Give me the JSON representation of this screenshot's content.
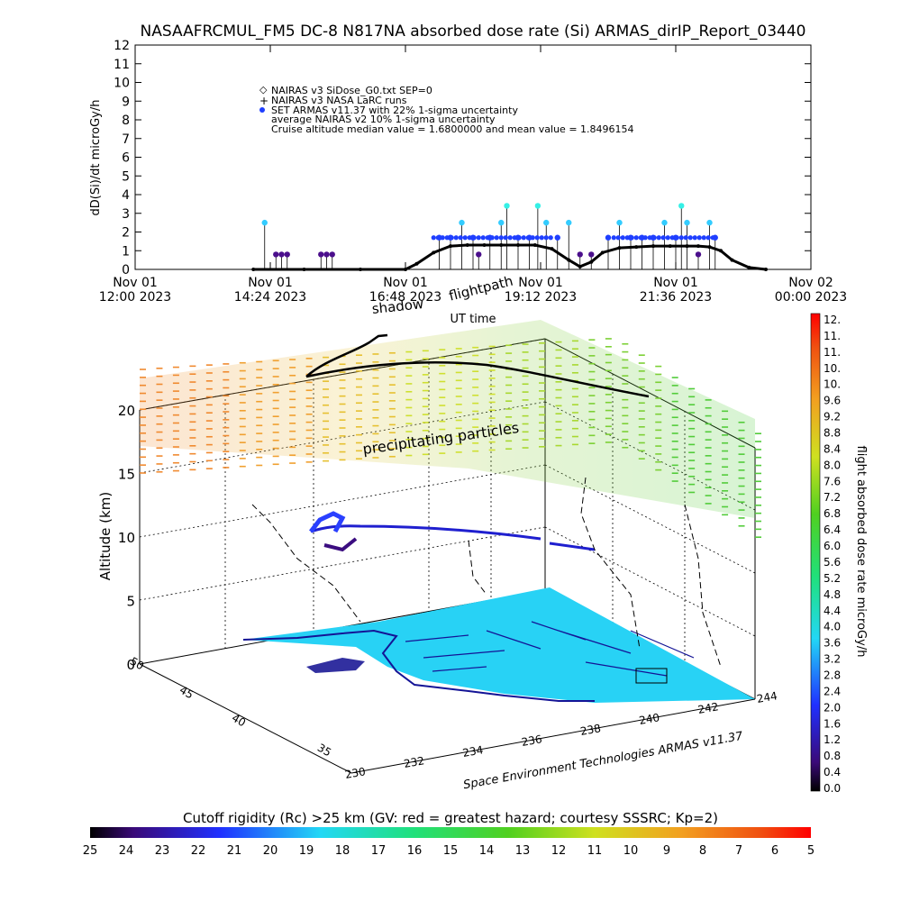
{
  "title": "NASAAFRCMUL_FM5 DC-8   N817NA absorbed dose rate (Si) ARMAS_dirIP_Report_03440",
  "colors": {
    "sidose": "#000000",
    "larc": "#000000",
    "armas_low": "#4b0f8c",
    "armas_mid": "#1f3fff",
    "armas_high": "#33ccff",
    "armas_peak": "#35f0e6",
    "ground": "#28d2f5",
    "coast": "#141496"
  },
  "time_plot": {
    "ylabel": "dD(Si)/dt microGy/h",
    "xlabel": "UT time",
    "y_ticks": [
      "0",
      "1",
      "2",
      "3",
      "4",
      "5",
      "6",
      "7",
      "8",
      "9",
      "10",
      "11",
      "12"
    ],
    "x_ticks": [
      {
        "line1": "Nov 01",
        "line2": "12:00 2023"
      },
      {
        "line1": "Nov 01",
        "line2": "14:24 2023"
      },
      {
        "line1": "Nov 01",
        "line2": "16:48 2023"
      },
      {
        "line1": "Nov 01",
        "line2": "19:12 2023"
      },
      {
        "line1": "Nov 01",
        "line2": "21:36 2023"
      },
      {
        "line1": "Nov 02",
        "line2": "00:00 2023"
      }
    ],
    "legend": [
      "NAIRAS v3 SiDose_G0.txt SEP=0",
      "NAIRAS v3 NASA LaRC runs",
      "SET ARMAS v11.37 with 22% 1-sigma uncertainty",
      "average NAIRAS v2 10% 1-sigma uncertainty",
      "Cruise altitude median value = 1.6800000 and mean value = 1.8496154"
    ]
  },
  "globe": {
    "label_shadow": "shadow",
    "label_flightpath": "flightpath",
    "label_precip": "precipitating particles",
    "altitude_label": "Altitude (km)",
    "altitude_ticks": [
      "0",
      "5",
      "10",
      "15",
      "20"
    ],
    "lon_ticks": [
      "230",
      "232",
      "234",
      "236",
      "238",
      "240",
      "242",
      "244"
    ],
    "lat_ticks": [
      "35",
      "40",
      "45",
      "50"
    ],
    "credit": "Space Environment Technologies ARMAS v11.37"
  },
  "dose_colorbar": {
    "label": "flight absorbed dose rate microGy/h",
    "ticks": [
      "12.",
      "11.",
      "11.",
      "10.",
      "10.",
      "9.6",
      "9.2",
      "8.8",
      "8.4",
      "8.0",
      "7.6",
      "7.2",
      "6.8",
      "6.4",
      "6.0",
      "5.6",
      "5.2",
      "4.8",
      "4.4",
      "4.0",
      "3.6",
      "3.2",
      "2.8",
      "2.4",
      "2.0",
      "1.6",
      "1.2",
      "0.8",
      "0.4",
      "0.0"
    ]
  },
  "cutoff_bar": {
    "title": "Cutoff rigidity (Rc) >25 km (GV: red = greatest hazard; courtesy SSSRC; Kp=2)",
    "ticks": [
      "25",
      "24",
      "23",
      "22",
      "21",
      "20",
      "19",
      "18",
      "17",
      "16",
      "15",
      "14",
      "13",
      "12",
      "11",
      "10",
      "9",
      "8",
      "7",
      "6",
      "5"
    ]
  },
  "chart_data": {
    "type": "scatter",
    "title": "NASAAFRCMUL_FM5 DC-8   N817NA absorbed dose rate (Si) ARMAS_dirIP_Report_03440",
    "xlabel": "UT time",
    "ylabel": "dD(Si)/dt microGy/h",
    "x_unit": "hours UT on Nov 01 2023",
    "xlim": [
      12.0,
      24.0
    ],
    "ylim": [
      0,
      12
    ],
    "x_tick_labels": [
      "Nov 01 12:00 2023",
      "Nov 01 14:24 2023",
      "Nov 01 16:48 2023",
      "Nov 01 19:12 2023",
      "Nov 01 21:36 2023",
      "Nov 02 00:00 2023"
    ],
    "series": [
      {
        "name": "NAIRAS v3 SiDose_G0.txt SEP=0",
        "x": [
          14.1,
          15.0,
          16.0,
          16.8,
          17.0,
          17.3,
          17.6,
          17.9,
          18.2,
          18.5,
          18.8,
          19.1,
          19.4,
          19.7,
          19.9,
          20.1,
          20.3,
          20.6,
          20.9,
          21.2,
          21.5,
          21.8,
          22.0,
          22.2,
          22.4,
          22.6,
          22.9,
          23.2
        ],
        "y": [
          0.0,
          0.0,
          0.0,
          0.0,
          0.3,
          0.9,
          1.25,
          1.3,
          1.3,
          1.3,
          1.3,
          1.3,
          1.1,
          0.5,
          0.15,
          0.4,
          0.9,
          1.15,
          1.2,
          1.25,
          1.25,
          1.25,
          1.25,
          1.2,
          1.0,
          0.5,
          0.1,
          0.0
        ]
      },
      {
        "name": "SET ARMAS v11.37 with 22% 1-sigma uncertainty",
        "x": [
          14.3,
          14.5,
          14.6,
          14.7,
          15.3,
          15.4,
          15.5,
          17.4,
          17.6,
          17.8,
          18.0,
          18.1,
          18.3,
          18.5,
          18.6,
          18.8,
          19.0,
          19.15,
          19.3,
          19.5,
          19.7,
          19.9,
          20.1,
          20.4,
          20.6,
          20.8,
          21.0,
          21.2,
          21.4,
          21.6,
          21.7,
          21.8,
          22.0,
          22.2,
          22.3
        ],
        "y": [
          2.5,
          0.8,
          0.8,
          0.8,
          0.8,
          0.8,
          0.8,
          1.7,
          1.7,
          2.5,
          1.7,
          0.8,
          1.7,
          2.5,
          3.4,
          1.7,
          1.7,
          3.4,
          2.5,
          1.7,
          2.5,
          0.8,
          0.8,
          1.7,
          2.5,
          1.7,
          1.7,
          1.7,
          2.5,
          1.7,
          3.4,
          2.5,
          0.8,
          2.5,
          1.7
        ]
      }
    ],
    "cruise_median": 1.68,
    "cruise_mean": 1.8496154
  }
}
